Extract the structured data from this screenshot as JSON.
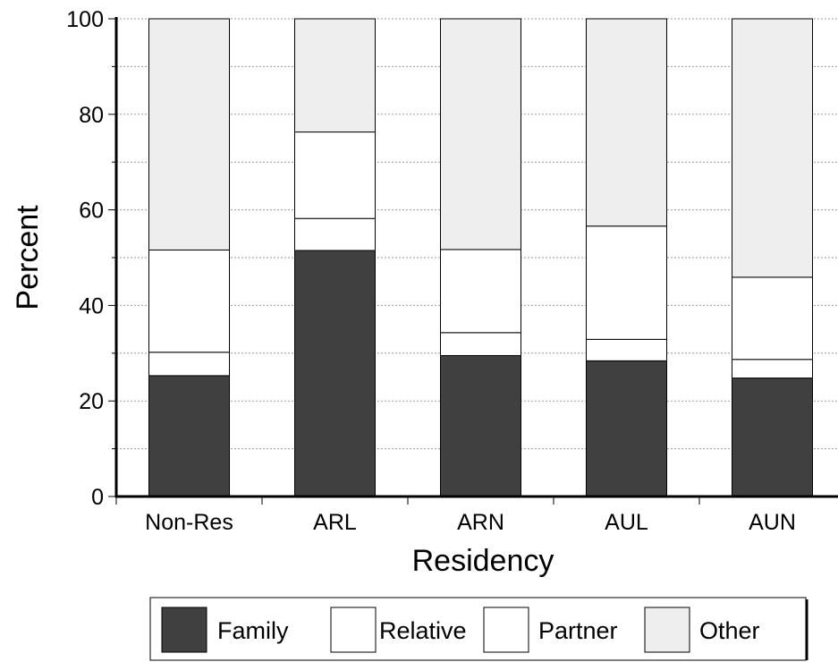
{
  "chart_data": {
    "type": "bar",
    "stacked": true,
    "title": "",
    "xlabel": "Residency",
    "ylabel": "Percent",
    "ylim": [
      0,
      100
    ],
    "yticks": [
      0,
      20,
      40,
      60,
      80,
      100
    ],
    "grid": true,
    "legend_position": "bottom",
    "categories": [
      "Non-Res",
      "ARL",
      "ARN",
      "AUL",
      "AUN"
    ],
    "series": [
      {
        "name": "Family",
        "color": "#404040",
        "values": [
          25.3,
          51.5,
          29.5,
          28.4,
          24.8
        ]
      },
      {
        "name": "Relative",
        "color": "#ffffff",
        "values": [
          4.9,
          6.7,
          4.8,
          4.5,
          3.9
        ]
      },
      {
        "name": "Partner",
        "color": "#ffffff",
        "values": [
          21.4,
          18.1,
          17.4,
          23.7,
          17.2
        ]
      },
      {
        "name": "Other",
        "color": "#eeeeee",
        "values": [
          48.4,
          23.7,
          48.3,
          43.4,
          54.1
        ]
      }
    ]
  }
}
